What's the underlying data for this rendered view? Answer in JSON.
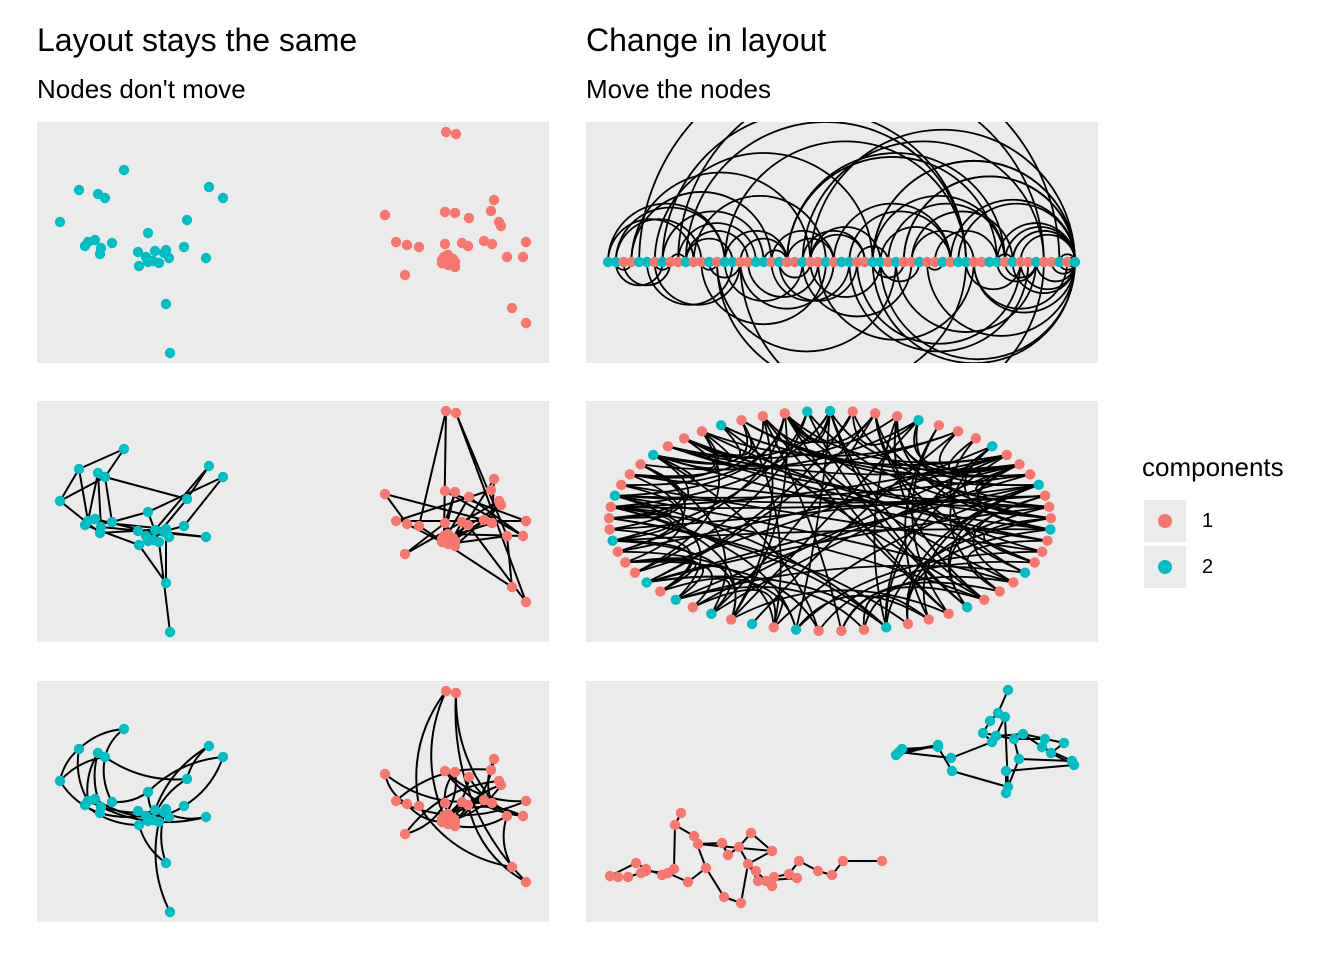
{
  "columns": [
    {
      "title": "Layout stays the same",
      "subtitle": "Nodes don't move"
    },
    {
      "title": "Change in layout",
      "subtitle": "Move the nodes"
    }
  ],
  "legend": {
    "title": "components",
    "items": [
      {
        "label": "1",
        "color": "#F8766D"
      },
      {
        "label": "2",
        "color": "#00BFC4"
      }
    ]
  },
  "chart_data": [
    {
      "type": "network",
      "panel": "fixed-nodes-only",
      "layout": "fixed",
      "edges_shown": false,
      "edge_style": "none"
    },
    {
      "type": "network",
      "panel": "fixed-straight-edges",
      "layout": "fixed",
      "edges_shown": true,
      "edge_style": "straight"
    },
    {
      "type": "network",
      "panel": "fixed-curved-edges",
      "layout": "fixed",
      "edges_shown": true,
      "edge_style": "curved"
    },
    {
      "type": "network",
      "panel": "linear-arc",
      "layout": "linear",
      "edges_shown": true,
      "edge_style": "arc"
    },
    {
      "type": "network",
      "panel": "circular",
      "layout": "circle",
      "edges_shown": true,
      "edge_style": "curved"
    },
    {
      "type": "network",
      "panel": "force-directed",
      "layout": "force-directed",
      "edges_shown": true,
      "edge_style": "straight"
    }
  ]
}
